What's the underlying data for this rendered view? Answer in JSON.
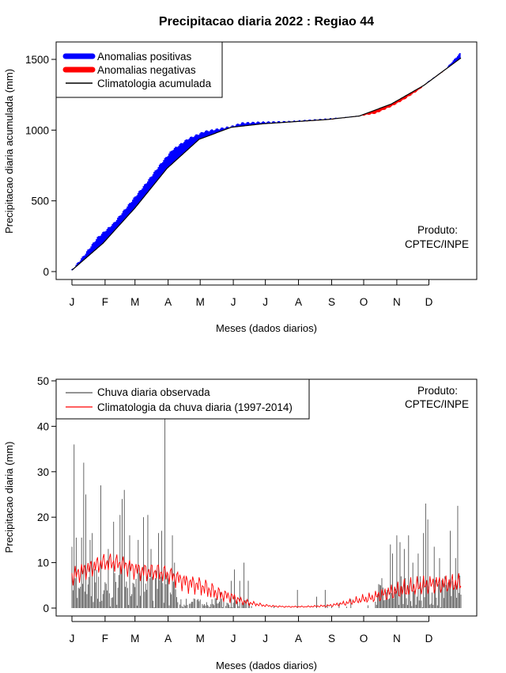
{
  "title": "Precipitacao diaria 2022 : Regiao 44",
  "chart_data": [
    {
      "type": "area",
      "name": "cumulative",
      "ylabel": "Precipitacao diaria acumulada (mm)",
      "xlabel": "Meses (dados diarios)",
      "month_ticks": [
        "J",
        "F",
        "M",
        "A",
        "M",
        "J",
        "J",
        "A",
        "S",
        "O",
        "N",
        "D"
      ],
      "month_start_days": [
        1,
        32,
        60,
        91,
        121,
        152,
        182,
        213,
        244,
        274,
        305,
        335
      ],
      "xlim": [
        1,
        365
      ],
      "ylim": [
        0,
        1550
      ],
      "yticks": [
        0,
        500,
        1000,
        1500
      ],
      "legend": [
        {
          "label": "Anomalias positivas",
          "color": "#0000ff"
        },
        {
          "label": "Anomalias negativas",
          "color": "#ff0000"
        },
        {
          "label": "Climatologia acumulada",
          "color": "#000000"
        }
      ],
      "legend_position": "top-left",
      "annotation": [
        "Produto:",
        "CPTEC/INPE"
      ],
      "climatology_knots": {
        "day": [
          1,
          30,
          60,
          90,
          120,
          150,
          180,
          210,
          240,
          270,
          300,
          330,
          365
        ],
        "value": [
          10,
          200,
          450,
          730,
          935,
          1020,
          1045,
          1060,
          1075,
          1100,
          1185,
          1315,
          1510
        ]
      },
      "observed_knots": {
        "day": [
          1,
          12,
          25,
          40,
          55,
          70,
          85,
          95,
          110,
          125,
          150,
          160,
          175,
          205,
          245,
          270,
          285,
          300,
          312,
          325,
          335,
          350,
          365
        ],
        "value": [
          10,
          110,
          240,
          340,
          480,
          620,
          770,
          860,
          940,
          990,
          1025,
          1050,
          1055,
          1060,
          1080,
          1100,
          1118,
          1168,
          1218,
          1282,
          1345,
          1425,
          1550
        ]
      }
    },
    {
      "type": "bar",
      "name": "daily",
      "ylabel": "Precipitacao diaria (mm)",
      "xlabel": "Meses (dados diarios)",
      "month_ticks": [
        "J",
        "F",
        "M",
        "A",
        "M",
        "J",
        "J",
        "A",
        "S",
        "O",
        "N",
        "D"
      ],
      "month_start_days": [
        1,
        32,
        60,
        91,
        121,
        152,
        182,
        213,
        244,
        274,
        305,
        335
      ],
      "xlim": [
        1,
        365
      ],
      "ylim": [
        0,
        50
      ],
      "yticks": [
        0,
        10,
        20,
        30,
        40,
        50
      ],
      "legend": [
        {
          "label": "Chuva diaria observada",
          "color": "#555555"
        },
        {
          "label": "Climatologia da chuva diaria (1997-2014)",
          "color": "#ff0000"
        }
      ],
      "legend_position": "top-left",
      "annotation": [
        "Produto:",
        "CPTEC/INPE"
      ],
      "peaks": [
        {
          "day": 1,
          "value": 13.5
        },
        {
          "day": 3,
          "value": 36
        },
        {
          "day": 5,
          "value": 15.5
        },
        {
          "day": 10,
          "value": 15.5
        },
        {
          "day": 12,
          "value": 32
        },
        {
          "day": 14,
          "value": 25
        },
        {
          "day": 18,
          "value": 15
        },
        {
          "day": 20,
          "value": 16.5
        },
        {
          "day": 28,
          "value": 27
        },
        {
          "day": 35,
          "value": 13
        },
        {
          "day": 40,
          "value": 19
        },
        {
          "day": 46,
          "value": 20.5
        },
        {
          "day": 48,
          "value": 24
        },
        {
          "day": 50,
          "value": 26
        },
        {
          "day": 55,
          "value": 16
        },
        {
          "day": 63,
          "value": 15
        },
        {
          "day": 68,
          "value": 20
        },
        {
          "day": 72,
          "value": 20.5
        },
        {
          "day": 75,
          "value": 13
        },
        {
          "day": 82,
          "value": 16.5
        },
        {
          "day": 85,
          "value": 17
        },
        {
          "day": 88,
          "value": 42
        },
        {
          "day": 95,
          "value": 16
        },
        {
          "day": 97,
          "value": 10
        },
        {
          "day": 140,
          "value": 3.5
        },
        {
          "day": 150,
          "value": 6
        },
        {
          "day": 153,
          "value": 8.5
        },
        {
          "day": 158,
          "value": 6
        },
        {
          "day": 162,
          "value": 10
        },
        {
          "day": 166,
          "value": 6
        },
        {
          "day": 212,
          "value": 4
        },
        {
          "day": 230,
          "value": 2.5
        },
        {
          "day": 238,
          "value": 4
        },
        {
          "day": 262,
          "value": 2
        },
        {
          "day": 290,
          "value": 5
        },
        {
          "day": 299,
          "value": 14
        },
        {
          "day": 301,
          "value": 12
        },
        {
          "day": 305,
          "value": 16
        },
        {
          "day": 308,
          "value": 14.5
        },
        {
          "day": 312,
          "value": 13
        },
        {
          "day": 316,
          "value": 16
        },
        {
          "day": 320,
          "value": 10
        },
        {
          "day": 325,
          "value": 12
        },
        {
          "day": 330,
          "value": 16.5
        },
        {
          "day": 332,
          "value": 23
        },
        {
          "day": 334,
          "value": 19.5
        },
        {
          "day": 340,
          "value": 13.5
        },
        {
          "day": 345,
          "value": 11
        },
        {
          "day": 350,
          "value": 7
        },
        {
          "day": 355,
          "value": 17
        },
        {
          "day": 360,
          "value": 11
        },
        {
          "day": 362,
          "value": 22.5
        }
      ],
      "climatology_knots": {
        "day": [
          1,
          10,
          20,
          30,
          40,
          50,
          60,
          70,
          80,
          90,
          100,
          110,
          120,
          130,
          140,
          150,
          160,
          170,
          180,
          190,
          200,
          210,
          220,
          230,
          240,
          250,
          260,
          270,
          280,
          290,
          300,
          310,
          320,
          330,
          340,
          350,
          365
        ],
        "value": [
          7,
          8,
          9,
          10,
          10,
          9.5,
          8.5,
          8,
          8,
          7.5,
          6.5,
          5.5,
          5,
          4,
          3,
          2.5,
          1.5,
          1,
          0.6,
          0.4,
          0.3,
          0.3,
          0.3,
          0.4,
          0.5,
          0.8,
          1.2,
          1.8,
          2.2,
          2.8,
          3.5,
          4,
          4.5,
          5,
          5.2,
          5.3,
          5.5
        ]
      }
    }
  ]
}
